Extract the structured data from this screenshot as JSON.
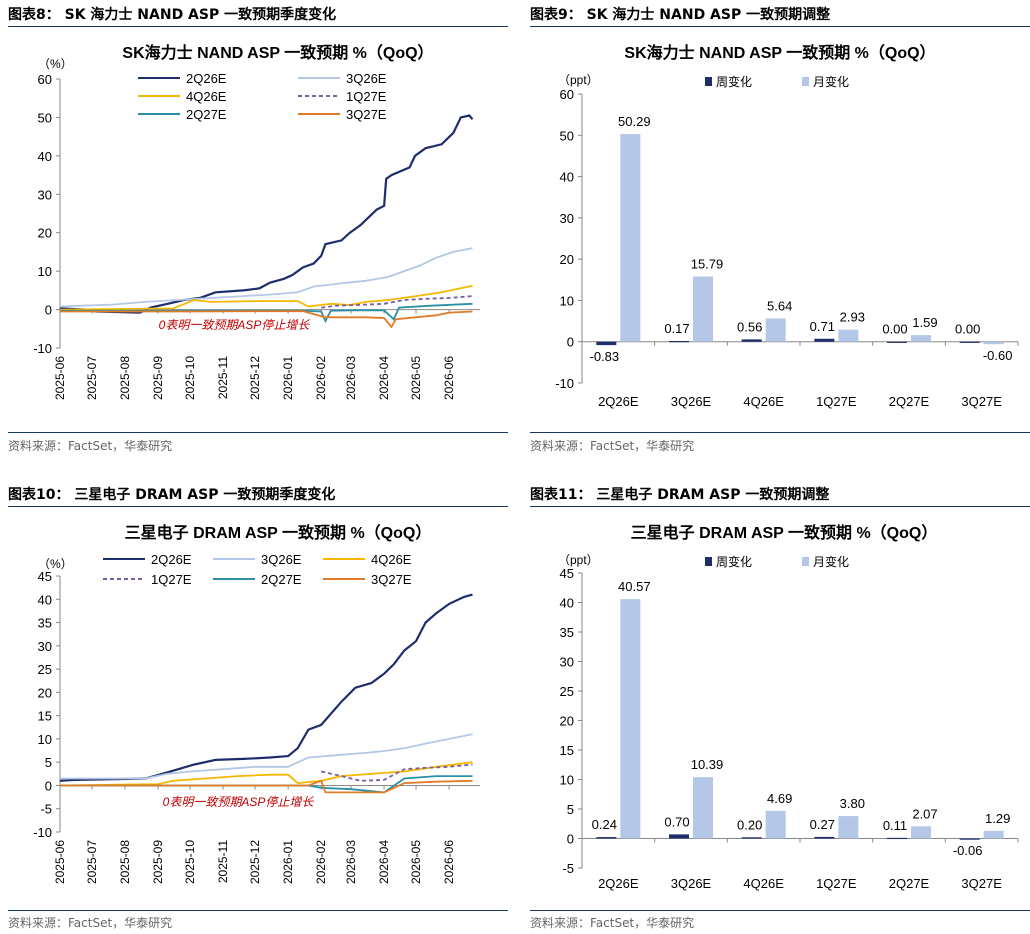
{
  "colors": {
    "dark": "#1f2d6b",
    "light": "#b4c7e7",
    "yellow": "#f5b800",
    "purple": "#7a5fa3",
    "teal": "#2b8fa5",
    "orange": "#e07b28",
    "weekly": "#1f2d6b",
    "monthly": "#b4c7e7",
    "red": "#c00000",
    "rule": "#17375e"
  },
  "panels": [
    {
      "title": "图表8： SK 海力士 NAND ASP 一致预期季度变化",
      "source": "资料来源：FactSet，华泰研究"
    },
    {
      "title": "图表9： SK 海力士 NAND ASP 一致预期调整",
      "source": "资料来源：FactSet，华泰研究"
    },
    {
      "title": "图表10： 三星电子 DRAM ASP 一致预期季度变化",
      "source": "资料来源：FactSet，华泰研究"
    },
    {
      "title": "图表11： 三星电子 DRAM ASP 一致预期调整",
      "source": "资料来源：FactSet，华泰研究"
    }
  ],
  "chart_data": [
    {
      "type": "line",
      "title": "SK海力士 NAND ASP 一致预期 %（QoQ）",
      "unit_label": "（%）",
      "ylim": [
        -10,
        60
      ],
      "yticks": [
        -10,
        0,
        10,
        20,
        30,
        40,
        50,
        60
      ],
      "xlim": [
        "2025-06-01",
        "2026-06-30"
      ],
      "xticks": [
        "2025-06",
        "2025-07",
        "2025-08",
        "2025-09",
        "2025-10",
        "2025-11",
        "2025-12",
        "2026-01",
        "2026-02",
        "2026-03",
        "2026-04",
        "2026-05",
        "2026-06"
      ],
      "annotation": "0表明一致预期ASP停止增长",
      "legend_columns": 2,
      "series": [
        {
          "name": "2Q26E",
          "color": "dark",
          "points": [
            [
              "2025-06-01",
              0.3
            ],
            [
              "2025-06-25",
              0
            ],
            [
              "2025-07-05",
              -0.5
            ],
            [
              "2025-08-15",
              -0.8
            ],
            [
              "2025-08-25",
              0.5
            ],
            [
              "2025-09-10",
              1.5
            ],
            [
              "2025-09-25",
              2.5
            ],
            [
              "2025-10-10",
              3
            ],
            [
              "2025-10-25",
              4.5
            ],
            [
              "2025-11-20",
              5
            ],
            [
              "2025-12-05",
              5.5
            ],
            [
              "2025-12-15",
              7
            ],
            [
              "2025-12-28",
              8
            ],
            [
              "2026-01-05",
              9
            ],
            [
              "2026-01-15",
              11
            ],
            [
              "2026-01-25",
              12
            ],
            [
              "2026-02-01",
              14
            ],
            [
              "2026-02-05",
              17
            ],
            [
              "2026-02-20",
              18
            ],
            [
              "2026-02-28",
              20
            ],
            [
              "2026-03-10",
              22
            ],
            [
              "2026-03-25",
              26
            ],
            [
              "2026-04-01",
              27
            ],
            [
              "2026-04-03",
              34
            ],
            [
              "2026-04-08",
              35
            ],
            [
              "2026-04-25",
              37
            ],
            [
              "2026-04-30",
              40
            ],
            [
              "2026-05-10",
              42
            ],
            [
              "2026-05-25",
              43
            ],
            [
              "2026-06-05",
              46
            ],
            [
              "2026-06-12",
              50
            ],
            [
              "2026-06-20",
              50.5
            ],
            [
              "2026-06-23",
              49.5
            ]
          ]
        },
        {
          "name": "3Q26E",
          "color": "light",
          "points": [
            [
              "2025-06-01",
              0.8
            ],
            [
              "2025-06-20",
              1
            ],
            [
              "2025-07-20",
              1.3
            ],
            [
              "2025-08-20",
              2
            ],
            [
              "2025-09-20",
              2.5
            ],
            [
              "2025-10-20",
              3
            ],
            [
              "2025-11-20",
              3.5
            ],
            [
              "2025-12-20",
              4
            ],
            [
              "2026-01-10",
              4.5
            ],
            [
              "2026-01-25",
              6
            ],
            [
              "2026-02-10",
              6.5
            ],
            [
              "2026-02-25",
              7
            ],
            [
              "2026-03-15",
              7.5
            ],
            [
              "2026-04-05",
              8.5
            ],
            [
              "2026-04-20",
              10
            ],
            [
              "2026-05-05",
              11.5
            ],
            [
              "2026-05-20",
              13.5
            ],
            [
              "2026-06-05",
              15
            ],
            [
              "2026-06-23",
              16
            ]
          ]
        },
        {
          "name": "4Q26E",
          "color": "yellow",
          "points": [
            [
              "2025-06-01",
              0
            ],
            [
              "2025-09-15",
              0.3
            ],
            [
              "2025-10-05",
              2.5
            ],
            [
              "2025-10-20",
              2
            ],
            [
              "2025-12-01",
              2.2
            ],
            [
              "2026-01-10",
              2.2
            ],
            [
              "2026-01-20",
              0.8
            ],
            [
              "2026-02-10",
              1.5
            ],
            [
              "2026-02-28",
              1.2
            ],
            [
              "2026-03-15",
              2
            ],
            [
              "2026-04-05",
              2.5
            ],
            [
              "2026-05-01",
              3.5
            ],
            [
              "2026-05-25",
              4.5
            ],
            [
              "2026-06-23",
              6.2
            ]
          ]
        },
        {
          "name": "1Q27E",
          "color": "purple",
          "dashed": true,
          "points": [
            [
              "2026-02-01",
              0.5
            ],
            [
              "2026-02-15",
              1
            ],
            [
              "2026-03-15",
              1.3
            ],
            [
              "2026-04-01",
              1.5
            ],
            [
              "2026-04-20",
              2.5
            ],
            [
              "2026-05-10",
              2.8
            ],
            [
              "2026-06-01",
              3
            ],
            [
              "2026-06-23",
              3.5
            ]
          ]
        },
        {
          "name": "2Q27E",
          "color": "teal",
          "points": [
            [
              "2025-06-01",
              -0.3
            ],
            [
              "2025-10-01",
              -0.3
            ],
            [
              "2026-01-15",
              -0.3
            ],
            [
              "2026-02-01",
              -0.5
            ],
            [
              "2026-02-05",
              -3
            ],
            [
              "2026-02-10",
              -0.3
            ],
            [
              "2026-03-01",
              -0.2
            ],
            [
              "2026-04-01",
              -0.2
            ],
            [
              "2026-04-10",
              -2.5
            ],
            [
              "2026-04-15",
              0.5
            ],
            [
              "2026-05-15",
              1
            ],
            [
              "2026-06-23",
              1.5
            ]
          ]
        },
        {
          "name": "3Q27E",
          "color": "orange",
          "points": [
            [
              "2025-06-01",
              -0.5
            ],
            [
              "2025-10-01",
              -0.5
            ],
            [
              "2026-01-15",
              -0.4
            ],
            [
              "2026-02-05",
              -2
            ],
            [
              "2026-03-15",
              -2
            ],
            [
              "2026-04-01",
              -2.2
            ],
            [
              "2026-04-08",
              -4.5
            ],
            [
              "2026-04-12",
              -2.5
            ],
            [
              "2026-05-20",
              -1.5
            ],
            [
              "2026-06-01",
              -0.8
            ],
            [
              "2026-06-23",
              -0.5
            ]
          ]
        }
      ]
    },
    {
      "type": "bar",
      "title": "SK海力士 NAND ASP 一致预期 %（QoQ）",
      "unit_label": "（ppt）",
      "ylim": [
        -10,
        60
      ],
      "yticks": [
        -10,
        0,
        10,
        20,
        30,
        40,
        50,
        60
      ],
      "categories": [
        "2Q26E",
        "3Q26E",
        "4Q26E",
        "1Q27E",
        "2Q27E",
        "3Q27E"
      ],
      "series": [
        {
          "name": "周变化",
          "color": "weekly",
          "values": [
            -0.83,
            0.17,
            0.56,
            0.71,
            0.0,
            0.0
          ]
        },
        {
          "name": "月变化",
          "color": "monthly",
          "values": [
            50.29,
            15.79,
            5.64,
            2.93,
            1.59,
            -0.6
          ]
        }
      ],
      "labels": {
        "周变化": [
          "-0.83",
          "0.17",
          "0.56",
          "0.71",
          "0.00",
          "0.00"
        ],
        "月变化": [
          "50.29",
          "15.79",
          "5.64",
          "2.93",
          "1.59",
          "-0.60"
        ]
      }
    },
    {
      "type": "line",
      "title": "三星电子 DRAM ASP 一致预期 %（QoQ）",
      "unit_label": "（%）",
      "ylim": [
        -10,
        45
      ],
      "yticks": [
        -10,
        -5,
        0,
        5,
        10,
        15,
        20,
        25,
        30,
        35,
        40,
        45
      ],
      "xlim": [
        "2025-06-01",
        "2026-06-30"
      ],
      "xticks": [
        "2025-06",
        "2025-07",
        "2025-08",
        "2025-09",
        "2025-10",
        "2025-11",
        "2025-12",
        "2026-01",
        "2026-02",
        "2026-03",
        "2026-04",
        "2026-05",
        "2026-06"
      ],
      "annotation": "0表明一致预期ASP停止增长",
      "legend_columns": 3,
      "series": [
        {
          "name": "2Q26E",
          "color": "dark",
          "points": [
            [
              "2025-06-01",
              1
            ],
            [
              "2025-06-15",
              1.2
            ],
            [
              "2025-08-20",
              1.5
            ],
            [
              "2025-09-05",
              2.5
            ],
            [
              "2025-09-20",
              3.5
            ],
            [
              "2025-10-05",
              4.5
            ],
            [
              "2025-10-25",
              5.5
            ],
            [
              "2025-11-20",
              5.7
            ],
            [
              "2025-12-15",
              6
            ],
            [
              "2026-01-01",
              6.3
            ],
            [
              "2026-01-10",
              8
            ],
            [
              "2026-01-20",
              12
            ],
            [
              "2026-02-01",
              13
            ],
            [
              "2026-02-20",
              18
            ],
            [
              "2026-03-05",
              21
            ],
            [
              "2026-03-20",
              22
            ],
            [
              "2026-04-01",
              24
            ],
            [
              "2026-04-10",
              26
            ],
            [
              "2026-04-20",
              29
            ],
            [
              "2026-05-01",
              31
            ],
            [
              "2026-05-10",
              35
            ],
            [
              "2026-05-20",
              37
            ],
            [
              "2026-06-01",
              39
            ],
            [
              "2026-06-15",
              40.5
            ],
            [
              "2026-06-23",
              41
            ]
          ]
        },
        {
          "name": "3Q26E",
          "color": "light",
          "points": [
            [
              "2025-06-01",
              1.5
            ],
            [
              "2025-07-01",
              1.5
            ],
            [
              "2025-08-20",
              1.5
            ],
            [
              "2025-09-10",
              2.5
            ],
            [
              "2025-10-01",
              3
            ],
            [
              "2025-11-01",
              3.5
            ],
            [
              "2025-12-01",
              4
            ],
            [
              "2026-01-01",
              4
            ],
            [
              "2026-01-20",
              6
            ],
            [
              "2026-02-15",
              6.5
            ],
            [
              "2026-03-15",
              7
            ],
            [
              "2026-04-05",
              7.5
            ],
            [
              "2026-04-20",
              8
            ],
            [
              "2026-05-10",
              9
            ],
            [
              "2026-06-01",
              10
            ],
            [
              "2026-06-23",
              11
            ]
          ]
        },
        {
          "name": "4Q26E",
          "color": "yellow",
          "points": [
            [
              "2025-06-01",
              0
            ],
            [
              "2025-09-01",
              0.3
            ],
            [
              "2025-09-15",
              1
            ],
            [
              "2025-10-15",
              1.5
            ],
            [
              "2025-11-15",
              2
            ],
            [
              "2025-12-15",
              2.3
            ],
            [
              "2026-01-01",
              2.3
            ],
            [
              "2026-01-10",
              0.5
            ],
            [
              "2026-02-01",
              1
            ],
            [
              "2026-02-20",
              2
            ],
            [
              "2026-03-20",
              2.5
            ],
            [
              "2026-04-20",
              3
            ],
            [
              "2026-05-20",
              4
            ],
            [
              "2026-06-23",
              5
            ]
          ]
        },
        {
          "name": "1Q27E",
          "color": "purple",
          "dashed": true,
          "points": [
            [
              "2026-02-01",
              3
            ],
            [
              "2026-02-20",
              2
            ],
            [
              "2026-03-10",
              1
            ],
            [
              "2026-04-01",
              1.2
            ],
            [
              "2026-04-20",
              3.5
            ],
            [
              "2026-05-10",
              3.8
            ],
            [
              "2026-06-01",
              4
            ],
            [
              "2026-06-23",
              4.5
            ]
          ]
        },
        {
          "name": "2Q27E",
          "color": "teal",
          "points": [
            [
              "2025-06-01",
              0
            ],
            [
              "2025-12-01",
              0
            ],
            [
              "2026-01-20",
              0
            ],
            [
              "2026-02-01",
              -0.5
            ],
            [
              "2026-03-01",
              -0.8
            ],
            [
              "2026-04-01",
              -1.5
            ],
            [
              "2026-04-20",
              1.5
            ],
            [
              "2026-05-20",
              2
            ],
            [
              "2026-06-23",
              2
            ]
          ]
        },
        {
          "name": "3Q27E",
          "color": "orange",
          "points": [
            [
              "2025-06-01",
              0
            ],
            [
              "2026-01-20",
              0
            ],
            [
              "2026-02-01",
              1
            ],
            [
              "2026-02-05",
              -1.5
            ],
            [
              "2026-04-01",
              -1.5
            ],
            [
              "2026-04-20",
              0.5
            ],
            [
              "2026-05-20",
              0.8
            ],
            [
              "2026-06-23",
              1
            ]
          ]
        }
      ]
    },
    {
      "type": "bar",
      "title": "三星电子 DRAM ASP 一致预期 %（QoQ）",
      "unit_label": "（ppt）",
      "ylim": [
        -5,
        45
      ],
      "yticks": [
        -5,
        0,
        5,
        10,
        15,
        20,
        25,
        30,
        35,
        40,
        45
      ],
      "categories": [
        "2Q26E",
        "3Q26E",
        "4Q26E",
        "1Q27E",
        "2Q27E",
        "3Q27E"
      ],
      "series": [
        {
          "name": "周变化",
          "color": "weekly",
          "values": [
            0.24,
            0.7,
            0.2,
            0.27,
            0.11,
            -0.06
          ]
        },
        {
          "name": "月变化",
          "color": "monthly",
          "values": [
            40.57,
            10.39,
            4.69,
            3.8,
            2.07,
            1.29
          ]
        }
      ],
      "labels": {
        "周变化": [
          "0.24",
          "0.70",
          "0.20",
          "0.27",
          "0.11",
          "-0.06"
        ],
        "月变化": [
          "40.57",
          "10.39",
          "4.69",
          "3.80",
          "2.07",
          "1.29"
        ]
      }
    }
  ]
}
